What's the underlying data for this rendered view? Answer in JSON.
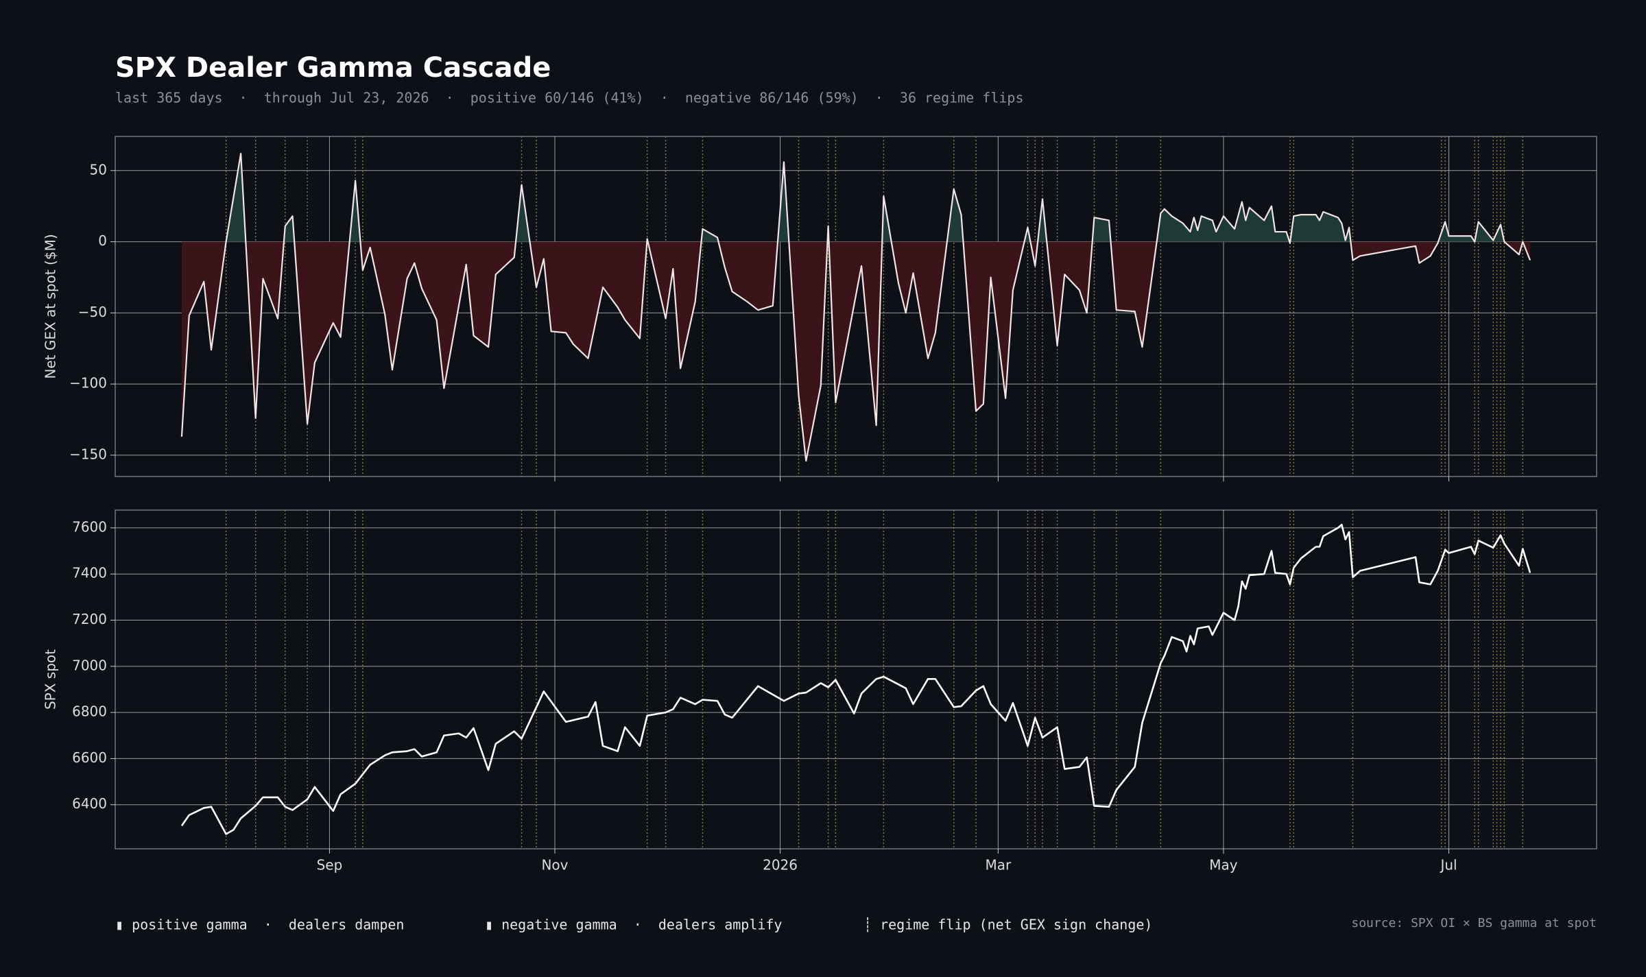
{
  "title": "SPX Dealer Gamma Cascade",
  "subtitle": "last 365 days  ·  through Jul 23, 2026  ·  positive 60/146 (41%)  ·  negative 86/146 (59%)  ·  36 regime flips",
  "legend_notes": [
    "▮ positive gamma  ·  dealers dampen",
    "▮ negative gamma  ·  dealers amplify",
    "┊ regime flip (net GEX sign change)"
  ],
  "source": "source: SPX OI × BS gamma at spot",
  "chart_data": [
    {
      "type": "area",
      "y_label": "Net GEX at spot ($M)",
      "xlim": [
        -18,
        383
      ],
      "ylim": [
        -165,
        74
      ],
      "yticks": [
        {
          "value": -150,
          "label": "−150"
        },
        {
          "value": -100,
          "label": "−100"
        },
        {
          "value": -50,
          "label": "−50"
        },
        0,
        50
      ],
      "grid": true,
      "positive_fill": "#1d3a36",
      "negative_fill": "#3b1419",
      "flip_color": "#8a7a3c",
      "regime_flips": [
        12,
        20,
        28,
        34,
        47,
        49,
        92,
        96,
        126,
        131,
        141,
        167,
        175,
        177,
        190,
        209,
        215,
        229,
        231,
        233,
        237,
        247,
        253,
        265,
        300,
        301,
        317,
        341,
        342,
        350,
        351,
        355,
        356,
        357,
        358,
        363
      ],
      "x": [
        0,
        2,
        6,
        8,
        12,
        16,
        20,
        22,
        26,
        28,
        30,
        34,
        36,
        41,
        43,
        47,
        49,
        51,
        55,
        57,
        61,
        63,
        65,
        69,
        71,
        77,
        79,
        83,
        85,
        90,
        92,
        96,
        98,
        100,
        104,
        106,
        110,
        114,
        118,
        120,
        124,
        126,
        131,
        133,
        135,
        139,
        141,
        145,
        147,
        149,
        153,
        156,
        160,
        163,
        167,
        169,
        173,
        175,
        177,
        184,
        188,
        190,
        194,
        196,
        198,
        202,
        204,
        209,
        211,
        215,
        217,
        219,
        223,
        225,
        229,
        231,
        233,
        237,
        239,
        243,
        245,
        247,
        251,
        253,
        258,
        260,
        265,
        266,
        268,
        271,
        273,
        274,
        275,
        276,
        279,
        280,
        282,
        285,
        287,
        288,
        289,
        293,
        295,
        296,
        299,
        300,
        301,
        303,
        307,
        308,
        309,
        313,
        314,
        315,
        316,
        317,
        319,
        334,
        335,
        338,
        340,
        342,
        343,
        349,
        350,
        351,
        355,
        357,
        358,
        362,
        363,
        365
      ],
      "series": [
        {
          "name": "Net GEX",
          "color": "#f2e4e4",
          "values": [
            -137,
            -52,
            -28,
            -76,
            0,
            62,
            -124,
            -26,
            -54,
            11,
            18,
            -128,
            -85,
            -57,
            -67,
            43,
            -20,
            -4,
            -51,
            -90,
            -26,
            -15,
            -33,
            -55,
            -103,
            -16,
            -66,
            -74,
            -23,
            -11,
            40,
            -32,
            -12,
            -63,
            -64,
            -72,
            -82,
            -32,
            -46,
            -55,
            -68,
            2,
            -54,
            -19,
            -89,
            -42,
            9,
            3,
            -18,
            -35,
            -42,
            -48,
            -45,
            56,
            -108,
            -154,
            -101,
            11,
            -113,
            -17,
            -129,
            32,
            -29,
            -50,
            -22,
            -82,
            -64,
            37,
            19,
            -119,
            -114,
            -25,
            -110,
            -34,
            10,
            -17,
            30,
            -73,
            -23,
            -34,
            -50,
            17,
            15,
            -48,
            -49,
            -74,
            20,
            23,
            18,
            13,
            7,
            17,
            8,
            18,
            15,
            7,
            18,
            9,
            28,
            15,
            24,
            15,
            25,
            7,
            7,
            -1,
            18,
            19,
            19,
            15,
            21,
            17,
            13,
            1,
            10,
            -13,
            -10,
            -3,
            -15,
            -10,
            -1,
            14,
            4,
            4,
            0,
            14,
            1,
            12,
            0,
            -9,
            0,
            -13
          ]
        }
      ]
    },
    {
      "type": "line",
      "y_label": "SPX spot",
      "xlim": [
        -18,
        383
      ],
      "ylim": [
        6209,
        7677
      ],
      "xticks": [
        {
          "value": 40,
          "label": "Sep"
        },
        {
          "value": 101,
          "label": "Nov"
        },
        {
          "value": 162,
          "label": "2026"
        },
        {
          "value": 221,
          "label": "Mar"
        },
        {
          "value": 282,
          "label": "May"
        },
        {
          "value": 343,
          "label": "Jul"
        }
      ],
      "yticks": [
        6400,
        6600,
        6800,
        7000,
        7200,
        7400,
        7600
      ],
      "grid": true,
      "x": [
        0,
        2,
        6,
        8,
        12,
        14,
        16,
        20,
        22,
        26,
        28,
        30,
        34,
        36,
        41,
        43,
        47,
        49,
        51,
        55,
        57,
        61,
        63,
        65,
        69,
        71,
        75,
        77,
        79,
        83,
        85,
        90,
        92,
        98,
        104,
        110,
        112,
        114,
        118,
        120,
        124,
        126,
        131,
        133,
        135,
        139,
        141,
        145,
        147,
        149,
        156,
        163,
        167,
        169,
        173,
        175,
        177,
        182,
        184,
        188,
        190,
        196,
        198,
        202,
        204,
        209,
        211,
        215,
        217,
        219,
        223,
        225,
        229,
        231,
        233,
        237,
        239,
        243,
        245,
        247,
        251,
        253,
        258,
        260,
        265,
        266,
        268,
        271,
        272,
        273,
        274,
        275,
        278,
        279,
        282,
        285,
        286,
        287,
        288,
        289,
        293,
        295,
        296,
        299,
        300,
        301,
        303,
        307,
        308,
        309,
        313,
        314,
        315,
        316,
        317,
        319,
        334,
        335,
        338,
        340,
        342,
        343,
        349,
        350,
        351,
        355,
        357,
        358,
        362,
        363,
        365
      ],
      "series": [
        {
          "name": "SPX spot",
          "color": "#ffffff",
          "values": [
            6309,
            6355,
            6386,
            6391,
            6273,
            6291,
            6341,
            6395,
            6432,
            6432,
            6391,
            6377,
            6423,
            6477,
            6373,
            6445,
            6491,
            6532,
            6573,
            6614,
            6627,
            6632,
            6641,
            6609,
            6627,
            6700,
            6709,
            6691,
            6732,
            6550,
            6664,
            6718,
            6686,
            6891,
            6759,
            6782,
            6845,
            6655,
            6632,
            6736,
            6655,
            6786,
            6800,
            6814,
            6864,
            6836,
            6855,
            6850,
            6791,
            6777,
            6914,
            6850,
            6882,
            6886,
            6927,
            6909,
            6941,
            6795,
            6882,
            6945,
            6955,
            6905,
            6836,
            6945,
            6945,
            6823,
            6827,
            6895,
            6914,
            6836,
            6764,
            6841,
            6655,
            6777,
            6691,
            6736,
            6555,
            6564,
            6605,
            6395,
            6391,
            6464,
            6564,
            6755,
            7014,
            7045,
            7127,
            7109,
            7064,
            7132,
            7095,
            7164,
            7173,
            7136,
            7232,
            7200,
            7259,
            7368,
            7336,
            7395,
            7400,
            7500,
            7405,
            7400,
            7355,
            7427,
            7468,
            7518,
            7518,
            7564,
            7600,
            7614,
            7550,
            7582,
            7386,
            7414,
            7473,
            7364,
            7355,
            7414,
            7505,
            7491,
            7518,
            7486,
            7545,
            7514,
            7568,
            7532,
            7436,
            7509,
            7405
          ]
        }
      ]
    }
  ]
}
